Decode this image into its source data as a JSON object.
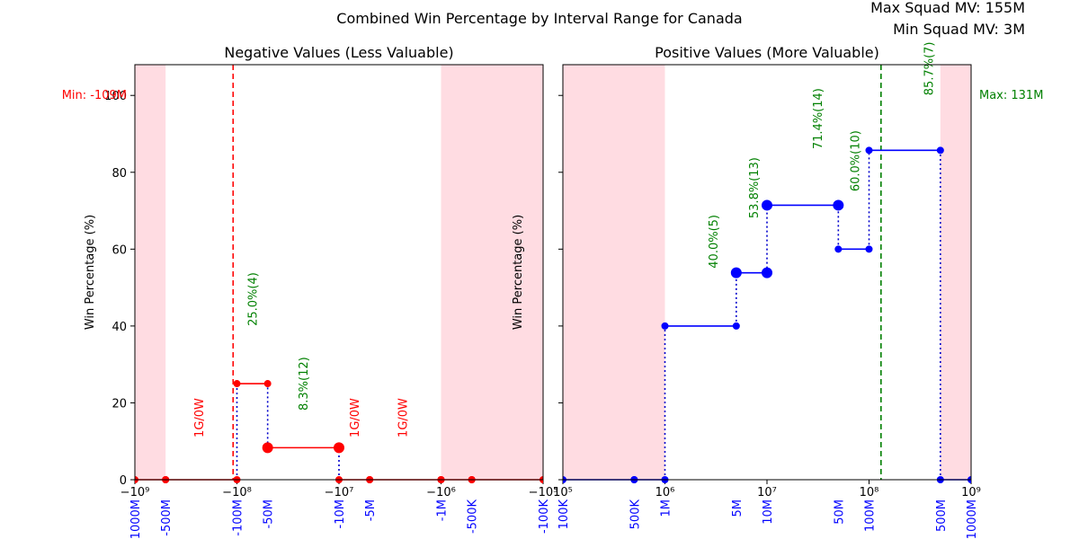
{
  "title": "Combined Win Percentage by Interval Range for Canada",
  "info": [
    "Max Squad MV: 155M",
    "Min Squad MV: 3M"
  ],
  "colors": {
    "neg_series": "#ff0000",
    "pos_series": "#0000ff",
    "connector": "#0000cc",
    "label_green": "#008000",
    "label_red": "#ff0000",
    "tick_blue": "#0000ff",
    "shade": "#ffc0cb",
    "min_line": "#ff0000",
    "max_line": "#008000"
  },
  "chart_data": [
    {
      "type": "line",
      "panel": "negative",
      "title": "Negative Values (Less Valuable)",
      "ylabel": "Win Percentage (%)",
      "xscale": "symlog",
      "xlim": [
        -1000000000,
        -100000
      ],
      "ylim": [
        0,
        108
      ],
      "yticks": [
        0,
        20,
        40,
        60,
        80,
        100
      ],
      "xticks_main": [
        {
          "v": -1000000000,
          "label": "−10⁹"
        },
        {
          "v": -100000000,
          "label": "−10⁸"
        },
        {
          "v": -10000000,
          "label": "−10⁷"
        },
        {
          "v": -1000000,
          "label": "−10⁶"
        },
        {
          "v": -100000,
          "label": "−10⁵"
        }
      ],
      "interval_ticks": [
        {
          "v": -1000000000,
          "label": "-1000M"
        },
        {
          "v": -500000000,
          "label": "-500M"
        },
        {
          "v": -100000000,
          "label": "-100M"
        },
        {
          "v": -50000000,
          "label": "-50M"
        },
        {
          "v": -10000000,
          "label": "-10M"
        },
        {
          "v": -5000000,
          "label": "-5M"
        },
        {
          "v": -1000000,
          "label": "-1M"
        },
        {
          "v": -500000,
          "label": "-500K"
        },
        {
          "v": -100000,
          "label": "-100K"
        }
      ],
      "shaded_ranges": [
        {
          "from": -1000000000,
          "to": -500000000
        },
        {
          "from": -1000000,
          "to": -100000
        }
      ],
      "segments": [
        {
          "x1": -1000000000,
          "x2": -500000000,
          "y": 0,
          "big": false
        },
        {
          "x1": -500000000,
          "x2": -100000000,
          "y": 0,
          "big": false
        },
        {
          "x1": -100000000,
          "x2": -50000000,
          "y": 25.0,
          "big": false
        },
        {
          "x1": -50000000,
          "x2": -10000000,
          "y": 8.33,
          "big": true
        },
        {
          "x1": -10000000,
          "x2": -5000000,
          "y": 0,
          "big": false
        },
        {
          "x1": -5000000,
          "x2": -1000000,
          "y": 0,
          "big": false
        },
        {
          "x1": -1000000,
          "x2": -500000,
          "y": 0,
          "big": false
        },
        {
          "x1": -500000,
          "x2": -100000,
          "y": 0,
          "big": false
        }
      ],
      "connectors": [
        {
          "x": -100000000,
          "y1": 0,
          "y2": 25.0
        },
        {
          "x": -50000000,
          "y1": 8.33,
          "y2": 25.0
        },
        {
          "x": -10000000,
          "y1": 0,
          "y2": 8.33
        }
      ],
      "annotations": [
        {
          "x": -238000000,
          "y": 11,
          "text": "1G/0W",
          "color": "red"
        },
        {
          "x": -71000000,
          "y": 40,
          "text": "25.0%(4)",
          "color": "green"
        },
        {
          "x": -22500000,
          "y": 18,
          "text": "8.3%(12)",
          "color": "green"
        },
        {
          "x": -7100000,
          "y": 11,
          "text": "1G/0W",
          "color": "red"
        },
        {
          "x": -2400000,
          "y": 11,
          "text": "1G/0W",
          "color": "red"
        }
      ],
      "ref_line": {
        "x": -109000000,
        "label": "Min: -109M",
        "label_y": 100,
        "side": "left",
        "color": "red"
      }
    },
    {
      "type": "line",
      "panel": "positive",
      "title": "Positive Values (More Valuable)",
      "ylabel": "Win Percentage (%)",
      "xscale": "log",
      "xlim": [
        100000,
        1000000000
      ],
      "ylim": [
        0,
        108
      ],
      "yticks": [
        0,
        20,
        40,
        60,
        80,
        100
      ],
      "xticks_main": [
        {
          "v": 100000,
          "label": "10⁵"
        },
        {
          "v": 1000000,
          "label": "10⁶"
        },
        {
          "v": 10000000,
          "label": "10⁷"
        },
        {
          "v": 100000000,
          "label": "10⁸"
        },
        {
          "v": 1000000000,
          "label": "10⁹"
        }
      ],
      "interval_ticks": [
        {
          "v": 100000,
          "label": "100K"
        },
        {
          "v": 500000,
          "label": "500K"
        },
        {
          "v": 1000000,
          "label": "1M"
        },
        {
          "v": 5000000,
          "label": "5M"
        },
        {
          "v": 10000000,
          "label": "10M"
        },
        {
          "v": 50000000,
          "label": "50M"
        },
        {
          "v": 100000000,
          "label": "100M"
        },
        {
          "v": 500000000,
          "label": "500M"
        },
        {
          "v": 1000000000,
          "label": "1000M"
        }
      ],
      "shaded_ranges": [
        {
          "from": 100000,
          "to": 1000000
        },
        {
          "from": 500000000,
          "to": 1000000000
        }
      ],
      "segments": [
        {
          "x1": 100000,
          "x2": 500000,
          "y": 0,
          "big": false
        },
        {
          "x1": 500000,
          "x2": 1000000,
          "y": 0,
          "big": false
        },
        {
          "x1": 1000000,
          "x2": 5000000,
          "y": 40.0,
          "big": false
        },
        {
          "x1": 5000000,
          "x2": 10000000,
          "y": 53.85,
          "big": true
        },
        {
          "x1": 10000000,
          "x2": 50000000,
          "y": 71.43,
          "big": true
        },
        {
          "x1": 50000000,
          "x2": 100000000,
          "y": 60.0,
          "big": false
        },
        {
          "x1": 100000000,
          "x2": 500000000,
          "y": 85.71,
          "big": false
        },
        {
          "x1": 500000000,
          "x2": 1000000000,
          "y": 0,
          "big": false
        }
      ],
      "connectors": [
        {
          "x": 1000000,
          "y1": 0,
          "y2": 40.0
        },
        {
          "x": 5000000,
          "y1": 40.0,
          "y2": 53.85
        },
        {
          "x": 10000000,
          "y1": 53.85,
          "y2": 71.43
        },
        {
          "x": 50000000,
          "y1": 60.0,
          "y2": 71.43
        },
        {
          "x": 100000000,
          "y1": 60.0,
          "y2": 85.71
        },
        {
          "x": 500000000,
          "y1": 0,
          "y2": 85.71
        }
      ],
      "annotations": [
        {
          "x": 2950000,
          "y": 55,
          "text": "40.0%(5)",
          "color": "green"
        },
        {
          "x": 7400000,
          "y": 68,
          "text": "53.8%(13)",
          "color": "green"
        },
        {
          "x": 31000000,
          "y": 86,
          "text": "71.4%(14)",
          "color": "green"
        },
        {
          "x": 72000000,
          "y": 75,
          "text": "60.0%(10)",
          "color": "green"
        },
        {
          "x": 380000000,
          "y": 100,
          "text": "85.7%(7)",
          "color": "green"
        }
      ],
      "ref_line": {
        "x": 131000000,
        "label": "Max: 131M",
        "label_y": 100,
        "side": "right",
        "color": "green"
      }
    }
  ]
}
